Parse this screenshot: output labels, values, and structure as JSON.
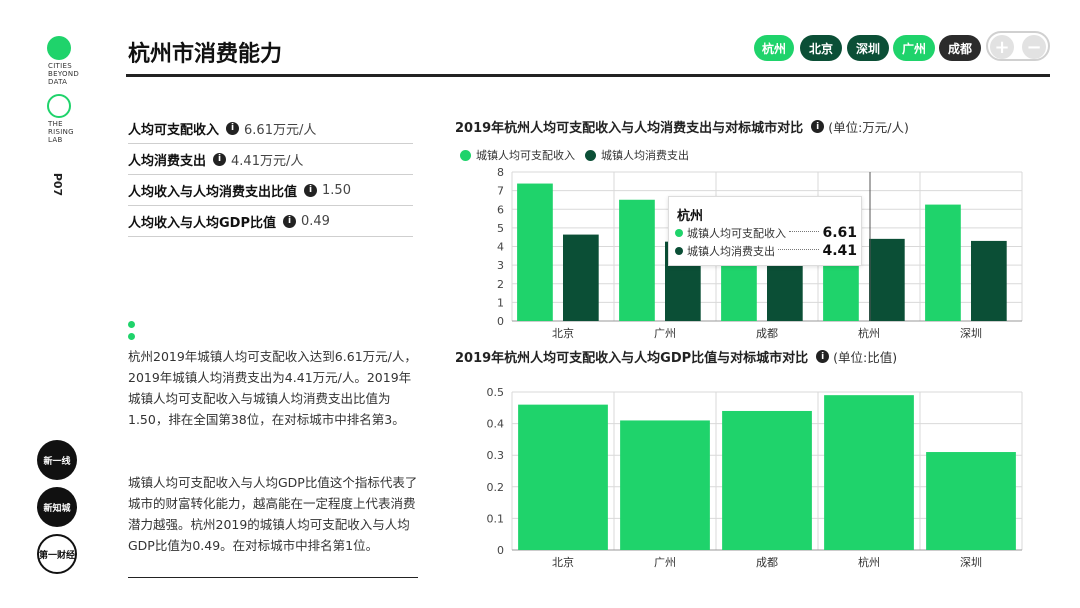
{
  "colors": {
    "green": "#1fd36b",
    "dark_green": "#0b4f36",
    "black": "#222222"
  },
  "sidebar": {
    "lab1": [
      "CITIES",
      "BEYOND",
      "DATA"
    ],
    "lab2": [
      "THE",
      "RISING",
      "LAB"
    ],
    "vertical_logo": "P07",
    "brands": [
      "新一线",
      "新知城",
      "第一财经"
    ]
  },
  "header": {
    "title": "杭州市消费能力",
    "cities": [
      {
        "label": "杭州",
        "color": "#1fd36b"
      },
      {
        "label": "北京",
        "color": "#0b4f36"
      },
      {
        "label": "深圳",
        "color": "#0b4f36"
      },
      {
        "label": "广州",
        "color": "#1fd36b"
      },
      {
        "label": "成都",
        "color": "#2b2b2b"
      }
    ],
    "zoom_in": "+",
    "zoom_out": "−"
  },
  "metrics": [
    {
      "label": "人均可支配收入",
      "value": "6.61万元/人"
    },
    {
      "label": "人均消费支出",
      "value": "4.41万元/人"
    },
    {
      "label": "人均收入与人均消费支出比值",
      "value": "1.50"
    },
    {
      "label": "人均收入与人均GDP比值",
      "value": "0.49"
    }
  ],
  "paragraphs": [
    "杭州2019年城镇人均可支配收入达到6.61万元/人，2019年城镇人均消费支出为4.41万元/人。2019年城镇人均可支配收入与城镇人均消费支出比值为1.50，排在全国第38位，在对标城市中排名第3。",
    "城镇人均可支配收入与人均GDP比值这个指标代表了城市的财富转化能力，越高能在一定程度上代表消费潜力越强。杭州2019的城镇人均可支配收入与人均GDP比值为0.49。在对标城市中排名第1位。"
  ],
  "chart_data": [
    {
      "type": "bar",
      "title": "2019年杭州人均可支配收入与人均消费支出与对标城市对比",
      "unit": "(单位:万元/人)",
      "categories": [
        "北京",
        "广州",
        "成都",
        "杭州",
        "深圳"
      ],
      "series": [
        {
          "name": "城镇人均可支配收入",
          "color": "#1fd36b",
          "values": [
            7.38,
            6.51,
            4.56,
            6.61,
            6.25
          ]
        },
        {
          "name": "城镇人均消费支出",
          "color": "#0b4f36",
          "values": [
            4.64,
            4.26,
            3.1,
            4.41,
            4.3
          ]
        }
      ],
      "ylim": [
        0,
        8
      ],
      "yticks": [
        "0",
        "1",
        "2",
        "3",
        "4",
        "5",
        "6",
        "7",
        "8"
      ],
      "grid": true,
      "legend": "top-left",
      "tooltip": {
        "title": "杭州",
        "rows": [
          {
            "label": "城镇人均可支配收入",
            "value": "6.61"
          },
          {
            "label": "城镇人均消费支出",
            "value": "4.41"
          }
        ]
      }
    },
    {
      "type": "bar",
      "title": "2019年杭州人均可支配收入与人均GDP比值与对标城市对比",
      "unit": "(单位:比值)",
      "categories": [
        "北京",
        "广州",
        "成都",
        "杭州",
        "深圳"
      ],
      "series": [
        {
          "color": "#1fd36b",
          "values": [
            0.46,
            0.41,
            0.44,
            0.49,
            0.31
          ]
        }
      ],
      "ylim": [
        0,
        0.5
      ],
      "yticks": [
        "0",
        "0.1",
        "0.2",
        "0.3",
        "0.4",
        "0.5"
      ],
      "grid": true
    }
  ]
}
